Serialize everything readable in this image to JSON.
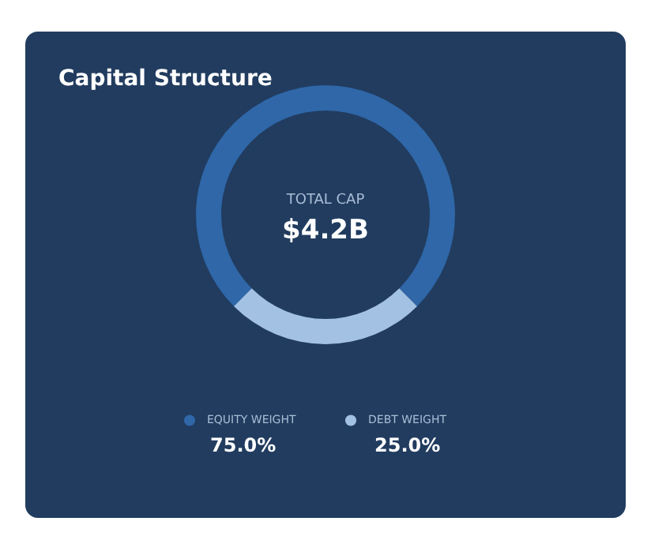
{
  "chart_data": {
    "type": "donut",
    "title": "Capital Structure",
    "categories": [
      "EQUITY WEIGHT",
      "DEBT WEIGHT"
    ],
    "values": [
      75,
      25
    ],
    "colors": [
      "#2f67a8",
      "#a3c1e3"
    ],
    "value_labels": [
      "75.0%",
      "25.0%"
    ],
    "annotations": [
      "TOTAL CAP",
      "$4.2B"
    ],
    "legend": "bottom"
  }
}
